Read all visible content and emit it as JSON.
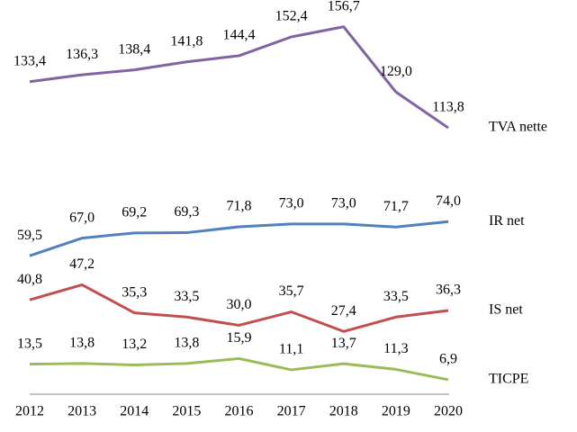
{
  "chart_data": {
    "type": "line",
    "categories": [
      "2012",
      "2013",
      "2014",
      "2015",
      "2016",
      "2017",
      "2018",
      "2019",
      "2020"
    ],
    "ylim": [
      0,
      165
    ],
    "series": [
      {
        "name": "TVA nette",
        "color": "#8064a2",
        "values": [
          133.4,
          136.3,
          138.4,
          141.8,
          144.4,
          152.4,
          156.7,
          129.0,
          113.8
        ],
        "value_labels": [
          "133,4",
          "136,3",
          "138,4",
          "141,8",
          "144,4",
          "152,4",
          "156,7",
          "129,0",
          "113,8"
        ]
      },
      {
        "name": "IR net",
        "color": "#4f81bd",
        "values": [
          59.5,
          67.0,
          69.2,
          69.3,
          71.8,
          73.0,
          73.0,
          71.7,
          74.0
        ],
        "value_labels": [
          "59,5",
          "67,0",
          "69,2",
          "69,3",
          "71,8",
          "73,0",
          "73,0",
          "71,7",
          "74,0"
        ]
      },
      {
        "name": "IS net",
        "color": "#c0504d",
        "values": [
          40.8,
          47.2,
          35.3,
          33.5,
          30.0,
          35.7,
          27.4,
          33.5,
          36.3
        ],
        "value_labels": [
          "40,8",
          "47,2",
          "35,3",
          "33,5",
          "30,0",
          "35,7",
          "27,4",
          "33,5",
          "36,3"
        ]
      },
      {
        "name": "TICPE",
        "color": "#9bbb59",
        "values": [
          13.5,
          13.8,
          13.2,
          13.8,
          15.9,
          11.1,
          13.7,
          11.3,
          6.9
        ],
        "value_labels": [
          "13,5",
          "13,8",
          "13,2",
          "13,8",
          "15,9",
          "11,1",
          "13,7",
          "11,3",
          "6,9"
        ]
      }
    ]
  }
}
